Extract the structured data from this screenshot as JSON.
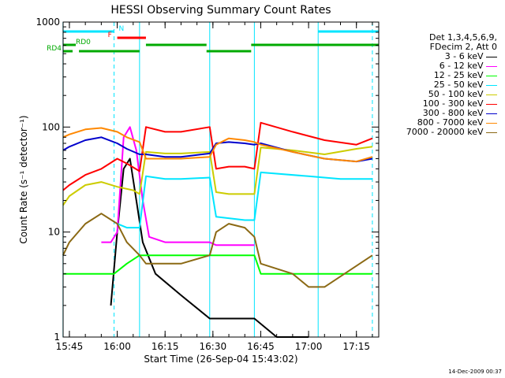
{
  "chart_data": {
    "type": "line",
    "title": "HESSI Observing Summary Count Rates",
    "xlabel": "Start Time (26-Sep-04 15:43:02)",
    "ylabel": "Count Rate (s⁻¹ detector⁻¹)",
    "y_scale": "log",
    "ylim": [
      1,
      1000
    ],
    "xlim": [
      "15:43:02",
      "17:22:00"
    ],
    "y_ticks": [
      "1",
      "10",
      "100",
      "1000"
    ],
    "x_ticks": [
      "15:45",
      "16:00",
      "16:15",
      "16:30",
      "16:45",
      "17:00",
      "17:15"
    ],
    "legend_header": [
      "Det 1,3,4,5,6,9,",
      "FDecim 2, Att 0"
    ],
    "legend_position": "right",
    "flags": [
      {
        "label": "N",
        "color": "#00e5ff",
        "segments": [
          [
            "15:43",
            "15:59"
          ],
          [
            "17:03",
            "17:22"
          ]
        ]
      },
      {
        "label": "F",
        "color": "#ff0000",
        "segments": [
          [
            "16:00",
            "16:09"
          ]
        ]
      },
      {
        "label": "RD0",
        "color": "#00aa00",
        "segments": [
          [
            "15:43",
            "15:47"
          ],
          [
            "16:09",
            "16:28"
          ],
          [
            "16:42",
            "17:22"
          ]
        ]
      },
      {
        "label": "RD4",
        "color": "#00aa00",
        "segments": [
          [
            "15:43",
            "15:46"
          ],
          [
            "15:48",
            "16:07"
          ],
          [
            "16:28",
            "16:42"
          ]
        ]
      }
    ],
    "vertical_lines": [
      {
        "time": "15:43",
        "color": "#00e5ff",
        "style": "solid"
      },
      {
        "time": "15:59",
        "color": "#00e5ff",
        "style": "dashed"
      },
      {
        "time": "16:07",
        "color": "#00e5ff",
        "style": "solid"
      },
      {
        "time": "16:29",
        "color": "#00e5ff",
        "style": "solid"
      },
      {
        "time": "16:43",
        "color": "#00e5ff",
        "style": "solid"
      },
      {
        "time": "17:03",
        "color": "#00e5ff",
        "style": "solid"
      },
      {
        "time": "17:20",
        "color": "#00e5ff",
        "style": "dashed"
      }
    ],
    "series": [
      {
        "name": "3 - 6 keV",
        "color": "#000000",
        "x": [
          "15:43",
          "15:55",
          "15:58",
          "16:00",
          "16:02",
          "16:04",
          "16:06",
          "16:08",
          "16:12",
          "16:20",
          "16:29",
          "16:35",
          "16:43",
          "16:50",
          "16:55",
          "17:00",
          "17:03",
          "17:20"
        ],
        "y": [
          null,
          null,
          2,
          10,
          40,
          50,
          20,
          8,
          4,
          2.5,
          1.5,
          1.5,
          1.5,
          1,
          1,
          1,
          null,
          null
        ]
      },
      {
        "name": "6 - 12 keV",
        "color": "#ff00ff",
        "x": [
          "15:55",
          "15:58",
          "16:00",
          "16:02",
          "16:04",
          "16:06",
          "16:08",
          "16:10",
          "16:15",
          "16:20",
          "16:29",
          "16:31",
          "16:43",
          "16:45",
          "17:00",
          "17:03"
        ],
        "y": [
          8,
          8,
          10,
          80,
          100,
          60,
          20,
          9,
          8,
          8,
          8,
          7.5,
          7.5,
          null,
          null,
          null
        ]
      },
      {
        "name": "12 - 25 keV",
        "color": "#00ff00",
        "x": [
          "15:43",
          "15:44",
          "15:57",
          "15:59",
          "16:03",
          "16:07",
          "16:12",
          "16:20",
          "16:29",
          "16:31",
          "16:43",
          "16:45",
          "17:00",
          "17:10",
          "17:20"
        ],
        "y": [
          4,
          4,
          4,
          4,
          5,
          6,
          6,
          6,
          6,
          6,
          6,
          4,
          4,
          4,
          4
        ]
      },
      {
        "name": "25 - 50 keV",
        "color": "#00e5ff",
        "x": [
          "15:43",
          "15:50",
          "15:57",
          "15:59",
          "16:00",
          "16:03",
          "16:07",
          "16:09",
          "16:15",
          "16:20",
          "16:29",
          "16:31",
          "16:40",
          "16:43",
          "16:45",
          "17:00",
          "17:10",
          "17:20"
        ],
        "y": [
          null,
          null,
          null,
          null,
          12,
          11,
          11,
          34,
          32,
          32,
          33,
          14,
          13,
          13,
          37,
          34,
          32,
          32
        ]
      },
      {
        "name": "50 - 100 keV",
        "color": "#cccc00",
        "x": [
          "15:43",
          "15:45",
          "15:50",
          "15:55",
          "16:00",
          "16:05",
          "16:07",
          "16:09",
          "16:15",
          "16:20",
          "16:29",
          "16:31",
          "16:35",
          "16:40",
          "16:43",
          "16:45",
          "16:55",
          "17:05",
          "17:15",
          "17:20"
        ],
        "y": [
          18,
          22,
          28,
          30,
          27,
          25,
          23,
          58,
          56,
          56,
          58,
          24,
          23,
          23,
          23,
          64,
          60,
          55,
          62,
          65
        ]
      },
      {
        "name": "100 - 300 keV",
        "color": "#ff0000",
        "x": [
          "15:43",
          "15:45",
          "15:50",
          "15:55",
          "16:00",
          "16:03",
          "16:07",
          "16:09",
          "16:15",
          "16:20",
          "16:29",
          "16:31",
          "16:35",
          "16:40",
          "16:43",
          "16:45",
          "16:55",
          "17:05",
          "17:15",
          "17:20"
        ],
        "y": [
          25,
          28,
          35,
          40,
          50,
          45,
          38,
          100,
          90,
          90,
          100,
          40,
          42,
          42,
          40,
          110,
          90,
          75,
          68,
          78
        ]
      },
      {
        "name": "300 - 800 keV",
        "color": "#0000cc",
        "x": [
          "15:43",
          "15:45",
          "15:50",
          "15:55",
          "16:00",
          "16:03",
          "16:07",
          "16:09",
          "16:15",
          "16:20",
          "16:29",
          "16:31",
          "16:35",
          "16:40",
          "16:43",
          "16:45",
          "16:55",
          "17:05",
          "17:15",
          "17:20"
        ],
        "y": [
          60,
          65,
          75,
          80,
          70,
          62,
          55,
          55,
          52,
          52,
          56,
          70,
          72,
          70,
          68,
          70,
          58,
          50,
          47,
          50
        ]
      },
      {
        "name": "800 - 7000 keV",
        "color": "#ff8800",
        "x": [
          "15:43",
          "15:45",
          "15:50",
          "15:55",
          "16:00",
          "16:03",
          "16:07",
          "16:09",
          "16:15",
          "16:20",
          "16:29",
          "16:31",
          "16:35",
          "16:40",
          "16:43",
          "16:45",
          "16:55",
          "17:05",
          "17:15",
          "17:20"
        ],
        "y": [
          80,
          85,
          95,
          98,
          90,
          80,
          72,
          50,
          50,
          50,
          52,
          68,
          78,
          75,
          72,
          68,
          58,
          50,
          47,
          52
        ]
      },
      {
        "name": "7000 - 20000 keV",
        "color": "#8b6914",
        "x": [
          "15:43",
          "15:45",
          "15:50",
          "15:55",
          "16:00",
          "16:03",
          "16:07",
          "16:09",
          "16:12",
          "16:20",
          "16:29",
          "16:31",
          "16:35",
          "16:40",
          "16:43",
          "16:45",
          "16:55",
          "17:00",
          "17:05",
          "17:20"
        ],
        "y": [
          6,
          8,
          12,
          15,
          12,
          8,
          6,
          5,
          5,
          5,
          6,
          10,
          12,
          11,
          9,
          5,
          4,
          3,
          3,
          6
        ]
      }
    ],
    "grid": false
  },
  "footer": "14-Dec-2009 00:37"
}
